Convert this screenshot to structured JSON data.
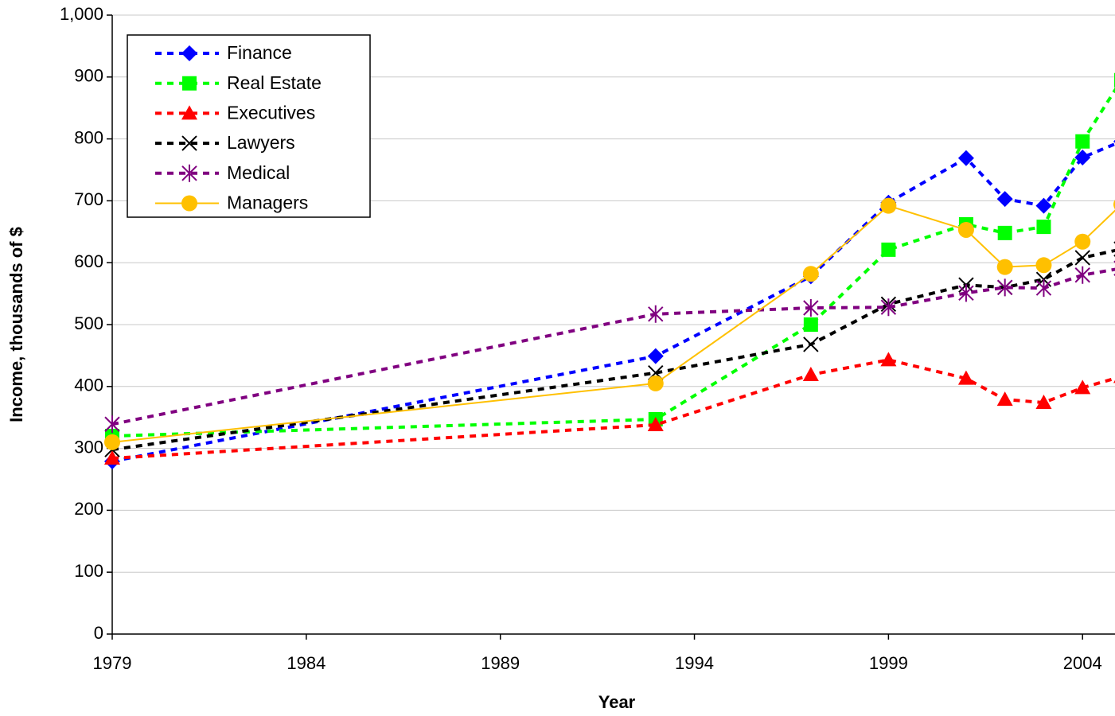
{
  "chart_data": {
    "type": "line",
    "x_label": "Year",
    "y_label": "Income, thousands of $",
    "x": [
      1979,
      1993,
      1997,
      1999,
      2001,
      2002,
      2003,
      2004,
      2005
    ],
    "xlim": [
      1979,
      2005
    ],
    "xticks": [
      1979,
      1984,
      1989,
      1994,
      1999,
      2004
    ],
    "ylim": [
      0,
      1000
    ],
    "yticks": [
      0,
      100,
      200,
      300,
      400,
      500,
      600,
      700,
      800,
      900,
      {
        "value": 1000,
        "label": "1,000"
      }
    ],
    "grid": true,
    "legend": "upper-left",
    "series": [
      {
        "name": "Finance",
        "color": "#0000FF",
        "marker": "diamond",
        "line_style": "dashed",
        "values": [
          279,
          449,
          578,
          697,
          769,
          703,
          692,
          770,
          796
        ]
      },
      {
        "name": "Real Estate",
        "color": "#00FF00",
        "marker": "square",
        "line_style": "dashed",
        "values": [
          320,
          347,
          500,
          621,
          662,
          648,
          658,
          796,
          895
        ]
      },
      {
        "name": "Executives",
        "color": "#FF0000",
        "marker": "triangle",
        "line_style": "dashed",
        "values": [
          284,
          338,
          419,
          443,
          413,
          379,
          374,
          398,
          416
        ]
      },
      {
        "name": "Lawyers",
        "color": "#000000",
        "marker": "x",
        "line_style": "dashed",
        "values": [
          298,
          422,
          468,
          533,
          564,
          560,
          573,
          608,
          622
        ]
      },
      {
        "name": "Medical",
        "color": "#800080",
        "marker": "asterisk",
        "line_style": "dashed",
        "values": [
          339,
          517,
          527,
          528,
          551,
          560,
          559,
          580,
          591
        ]
      },
      {
        "name": "Managers",
        "color": "#FFC000",
        "marker": "circle",
        "line_style": "solid",
        "values": [
          310,
          405,
          582,
          692,
          653,
          593,
          596,
          634,
          694
        ]
      }
    ]
  }
}
